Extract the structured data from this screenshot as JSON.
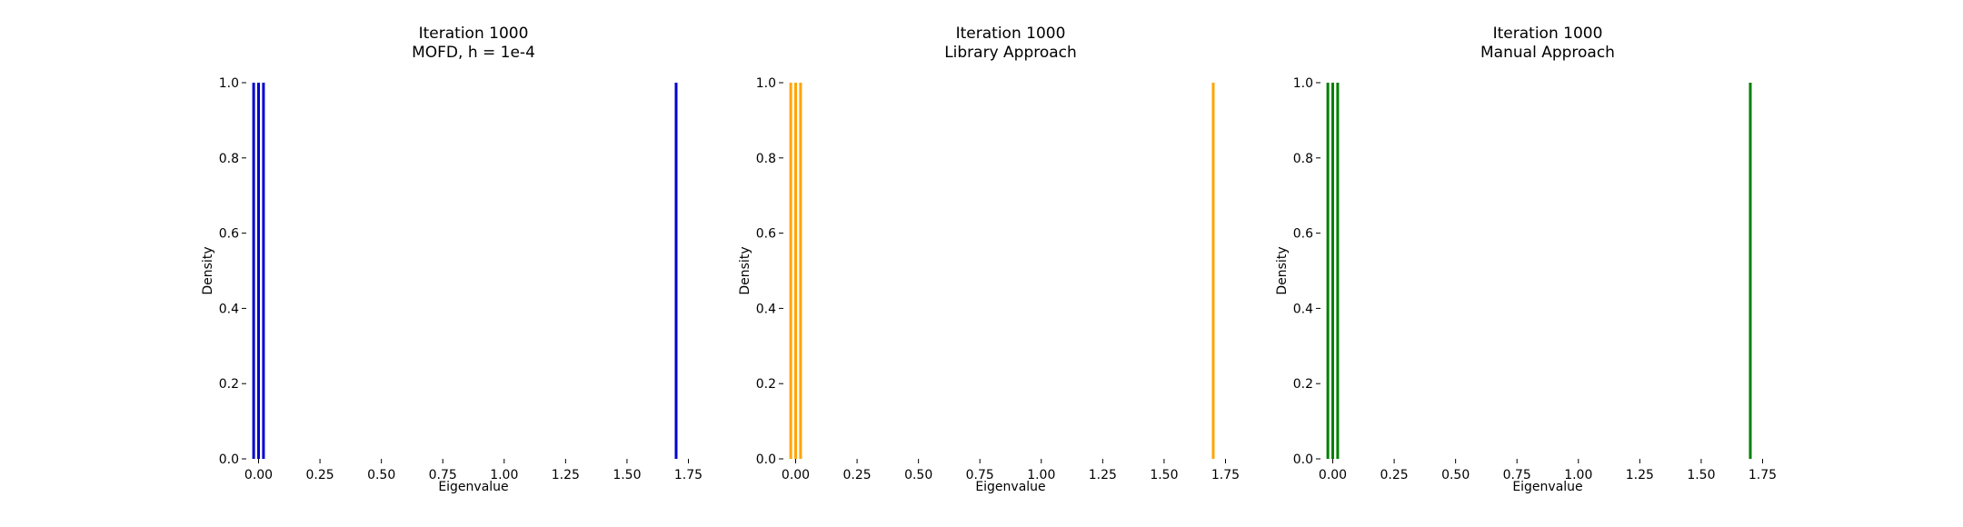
{
  "chart_data": [
    {
      "type": "bar",
      "title_line1": "Iteration 1000",
      "title_line2": "MOFD, h = 1e-4",
      "xlabel": "Eigenvalue",
      "ylabel": "Density",
      "xlim": [
        -0.05,
        1.8
      ],
      "ylim": [
        0,
        1.0
      ],
      "xticks": [
        0.0,
        0.25,
        0.5,
        0.75,
        1.0,
        1.25,
        1.5,
        1.75
      ],
      "xtick_labels": [
        "0.00",
        "0.25",
        "0.50",
        "0.75",
        "1.00",
        "1.25",
        "1.50",
        "1.75"
      ],
      "yticks": [
        0.0,
        0.2,
        0.4,
        0.6,
        0.8,
        1.0
      ],
      "ytick_labels": [
        "0.0",
        "0.2",
        "0.4",
        "0.6",
        "0.8",
        "1.0"
      ],
      "color": "#0000cc",
      "eigenvalues": [
        -0.02,
        0.0,
        0.02,
        1.7
      ],
      "values": [
        1.0,
        1.0,
        1.0,
        1.0
      ]
    },
    {
      "type": "bar",
      "title_line1": "Iteration 1000",
      "title_line2": "Library Approach",
      "xlabel": "Eigenvalue",
      "ylabel": "Density",
      "xlim": [
        -0.05,
        1.8
      ],
      "ylim": [
        0,
        1.0
      ],
      "xticks": [
        0.0,
        0.25,
        0.5,
        0.75,
        1.0,
        1.25,
        1.5,
        1.75
      ],
      "xtick_labels": [
        "0.00",
        "0.25",
        "0.50",
        "0.75",
        "1.00",
        "1.25",
        "1.50",
        "1.75"
      ],
      "yticks": [
        0.0,
        0.2,
        0.4,
        0.6,
        0.8,
        1.0
      ],
      "ytick_labels": [
        "0.0",
        "0.2",
        "0.4",
        "0.6",
        "0.8",
        "1.0"
      ],
      "color": "#ffa500",
      "eigenvalues": [
        -0.02,
        0.0,
        0.02,
        1.7
      ],
      "values": [
        1.0,
        1.0,
        1.0,
        1.0
      ]
    },
    {
      "type": "bar",
      "title_line1": "Iteration 1000",
      "title_line2": "Manual Approach",
      "xlabel": "Eigenvalue",
      "ylabel": "Density",
      "xlim": [
        -0.05,
        1.8
      ],
      "ylim": [
        0,
        1.0
      ],
      "xticks": [
        0.0,
        0.25,
        0.5,
        0.75,
        1.0,
        1.25,
        1.5,
        1.75
      ],
      "xtick_labels": [
        "0.00",
        "0.25",
        "0.50",
        "0.75",
        "1.00",
        "1.25",
        "1.50",
        "1.75"
      ],
      "yticks": [
        0.0,
        0.2,
        0.4,
        0.6,
        0.8,
        1.0
      ],
      "ytick_labels": [
        "0.0",
        "0.2",
        "0.4",
        "0.6",
        "0.8",
        "1.0"
      ],
      "color": "#008000",
      "eigenvalues": [
        -0.02,
        0.0,
        0.02,
        1.7
      ],
      "values": [
        1.0,
        1.0,
        1.0,
        1.0
      ]
    }
  ]
}
